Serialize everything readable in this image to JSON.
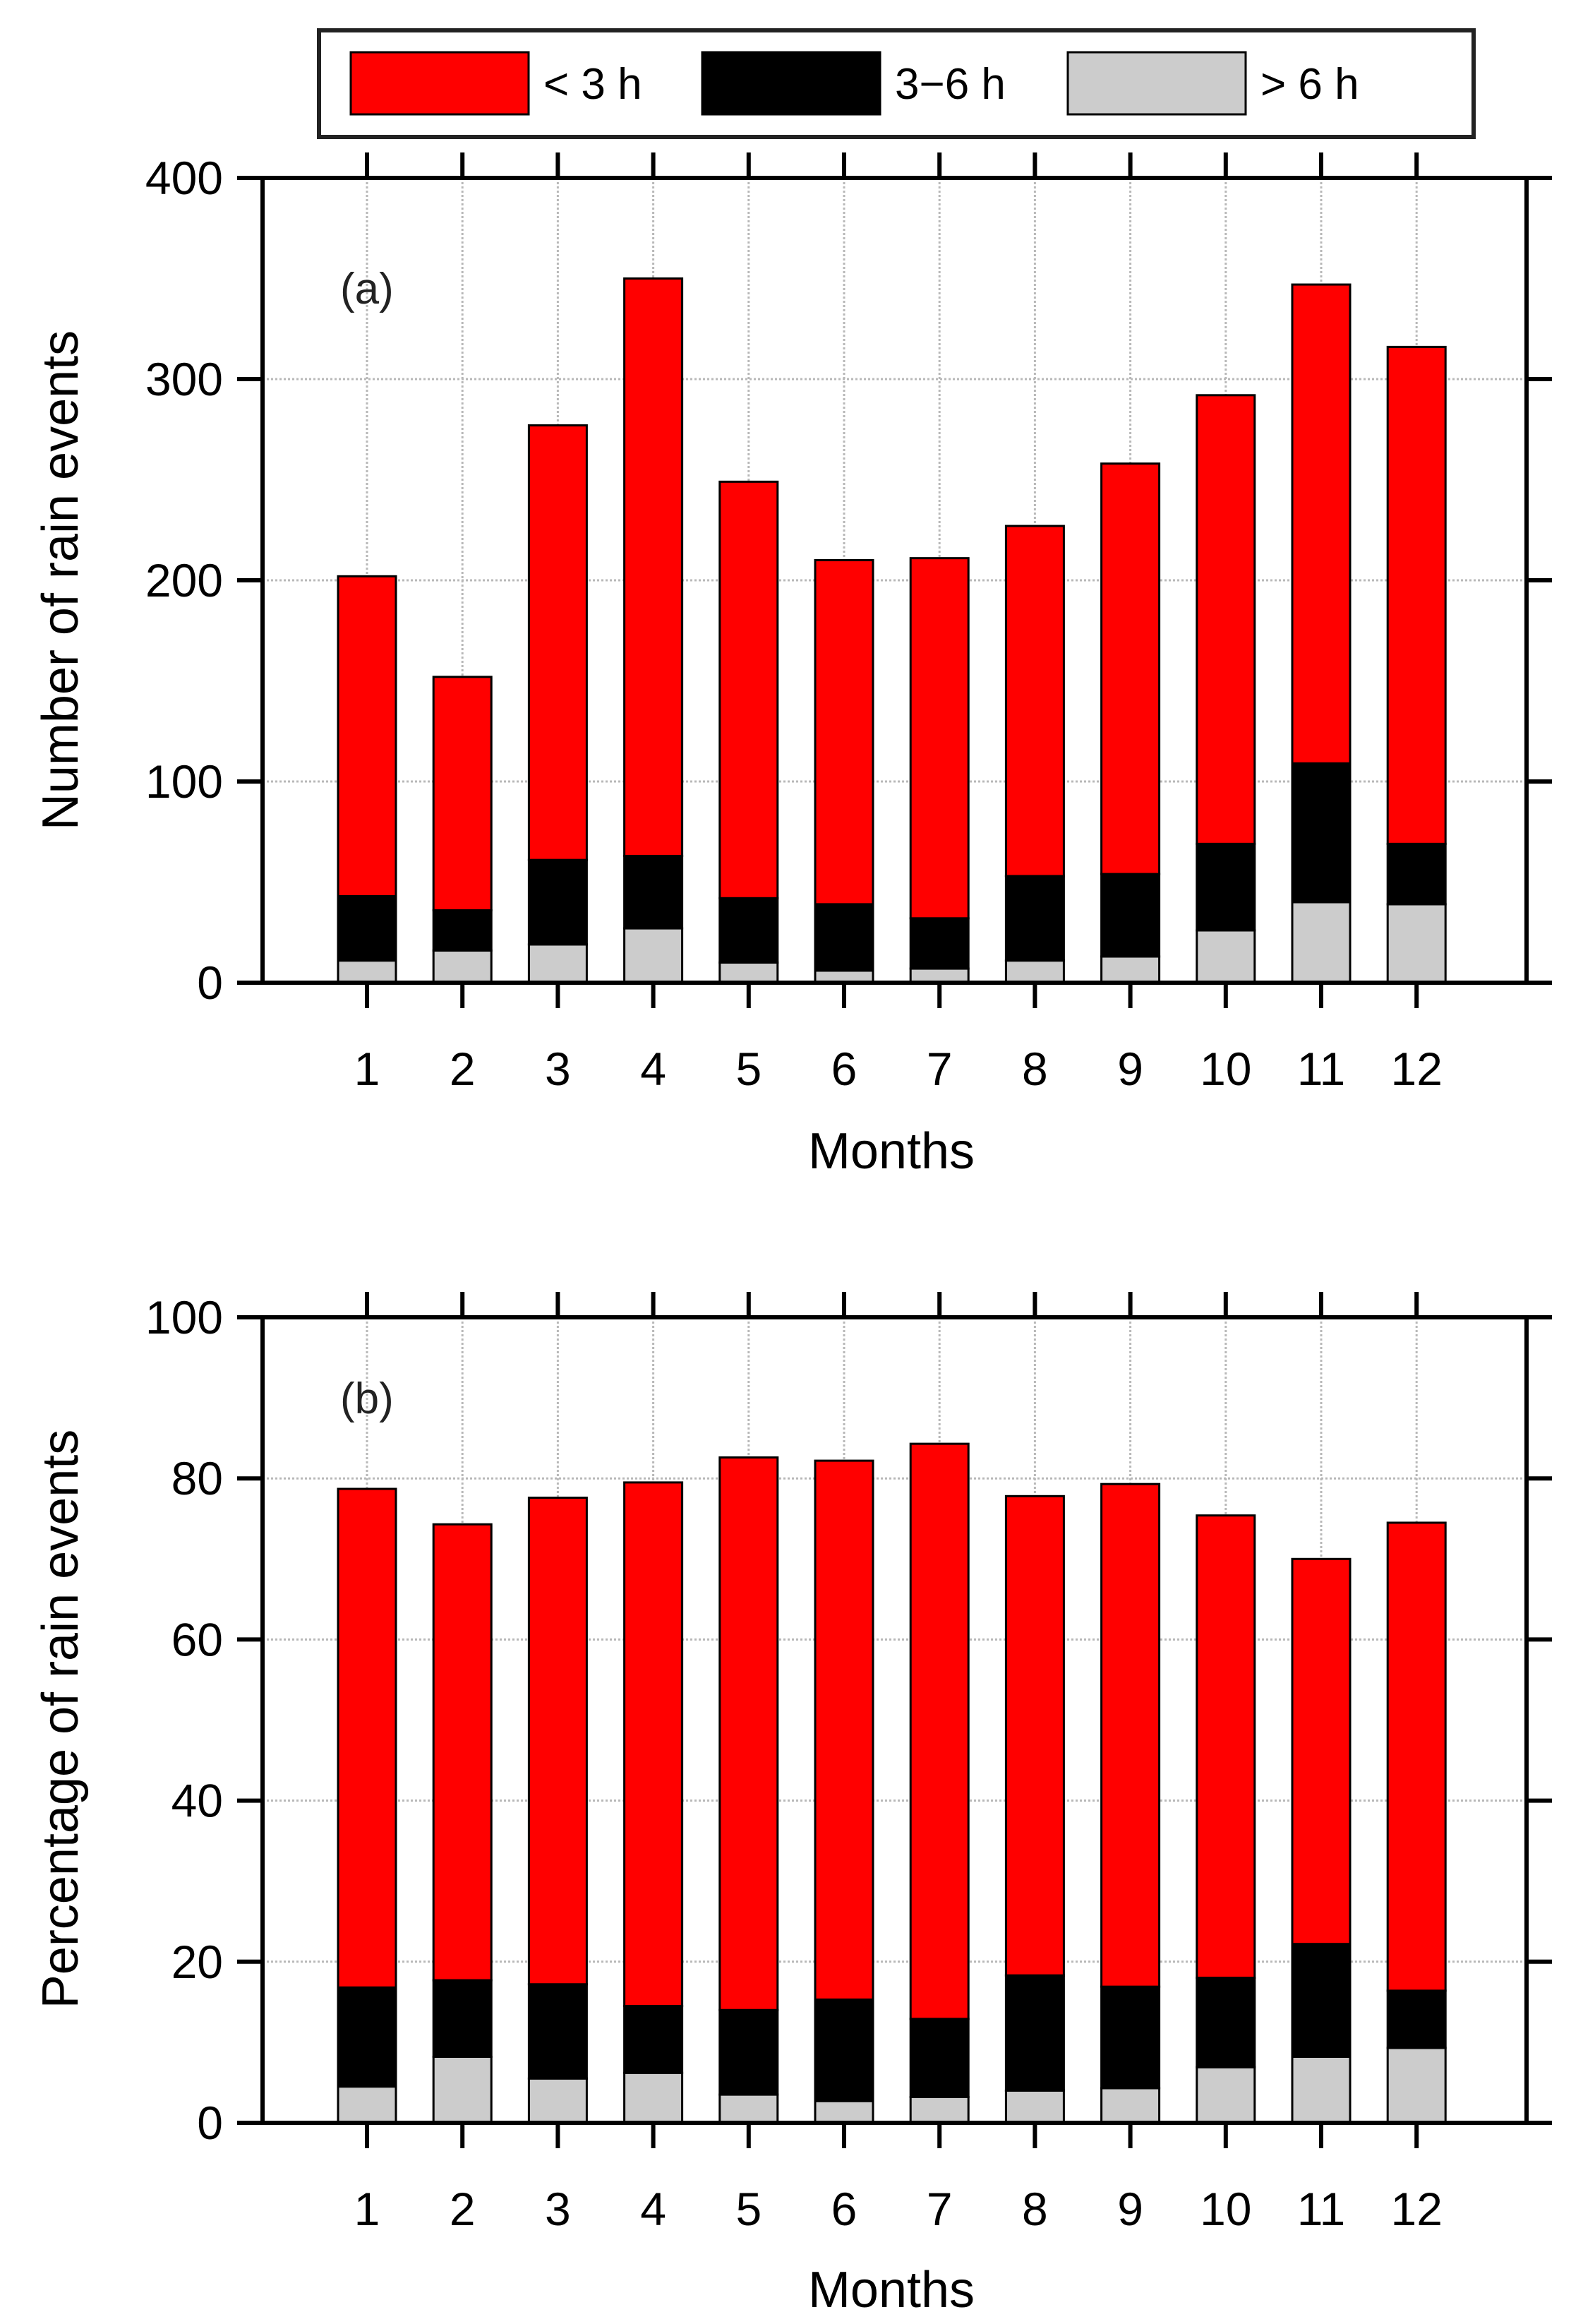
{
  "colors": {
    "lt3": "#ff0000",
    "mid": "#000000",
    "gt6": "#cccccc",
    "grid": "#b8b8b8",
    "axis": "#000000"
  },
  "legend": {
    "items": [
      {
        "key": "lt3",
        "label": "< 3 h"
      },
      {
        "key": "mid",
        "label": "3−6 h"
      },
      {
        "key": "gt6",
        "label": "> 6 h"
      }
    ]
  },
  "chart_data": [
    {
      "type": "bar",
      "stacked": true,
      "panel_label": "(a)",
      "xlabel": "Months",
      "ylabel": "Number of rain events",
      "ylim": [
        0,
        400
      ],
      "yticks": [
        0,
        100,
        200,
        300,
        400
      ],
      "categories": [
        "1",
        "2",
        "3",
        "4",
        "5",
        "6",
        "7",
        "8",
        "9",
        "10",
        "11",
        "12"
      ],
      "totals": [
        202,
        152,
        277,
        350,
        249,
        210,
        211,
        227,
        258,
        292,
        347,
        316
      ],
      "series": [
        {
          "name": "> 6 h",
          "key": "gt6",
          "values": [
            11,
            16,
            19,
            27,
            10,
            6,
            7,
            11,
            13,
            26,
            40,
            39
          ]
        },
        {
          "name": "3−6 h",
          "key": "mid",
          "values": [
            32,
            20,
            42,
            36,
            32,
            33,
            25,
            42,
            41,
            43,
            69,
            30
          ]
        },
        {
          "name": "< 3 h",
          "key": "lt3",
          "values": [
            159,
            116,
            216,
            287,
            207,
            171,
            179,
            174,
            204,
            223,
            238,
            247
          ]
        }
      ]
    },
    {
      "type": "bar",
      "stacked": true,
      "panel_label": "(b)",
      "xlabel": "Months",
      "ylabel": "Percentage of rain events",
      "ylim": [
        0,
        100
      ],
      "yticks": [
        0,
        20,
        40,
        60,
        80,
        100
      ],
      "categories": [
        "1",
        "2",
        "3",
        "4",
        "5",
        "6",
        "7",
        "8",
        "9",
        "10",
        "11",
        "12"
      ],
      "totals": [
        78.7,
        74.3,
        77.6,
        79.5,
        82.6,
        82.2,
        84.3,
        77.8,
        79.3,
        75.4,
        70.0,
        74.5
      ],
      "series": [
        {
          "name": "> 6 h",
          "key": "gt6",
          "values": [
            4.5,
            8.2,
            5.5,
            6.2,
            3.5,
            2.7,
            3.2,
            4.0,
            4.3,
            6.9,
            8.2,
            9.3
          ]
        },
        {
          "name": "3−6 h",
          "key": "mid",
          "values": [
            12.3,
            9.5,
            11.7,
            8.3,
            10.5,
            12.6,
            9.7,
            14.3,
            12.6,
            11.1,
            14.0,
            7.1
          ]
        },
        {
          "name": "< 3 h",
          "key": "lt3",
          "values": [
            61.9,
            56.6,
            60.4,
            65.0,
            68.6,
            66.9,
            71.4,
            59.5,
            62.4,
            57.4,
            47.8,
            58.1
          ]
        }
      ]
    }
  ]
}
